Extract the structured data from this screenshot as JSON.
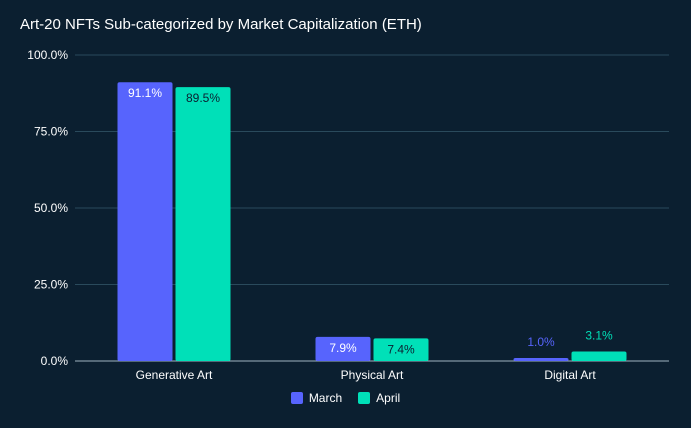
{
  "chart_data": {
    "type": "bar",
    "title": "Art-20 NFTs Sub-categorized by Market Capitalization (ETH)",
    "categories": [
      "Generative Art",
      "Physical Art",
      "Digital Art"
    ],
    "series": [
      {
        "name": "March",
        "color": "#5764fd",
        "values": [
          91.1,
          7.9,
          1.0
        ],
        "labels": [
          "91.1%",
          "7.9%",
          "1.0%"
        ]
      },
      {
        "name": "April",
        "color": "#00e0b8",
        "values": [
          89.5,
          7.4,
          3.1
        ],
        "labels": [
          "89.5%",
          "7.4%",
          "3.1%"
        ]
      }
    ],
    "ylim": [
      0,
      100
    ],
    "yticks": [
      {
        "value": 0,
        "label": "0.0%"
      },
      {
        "value": 25,
        "label": "25.0%"
      },
      {
        "value": 50,
        "label": "50.0%"
      },
      {
        "value": 75,
        "label": "75.0%"
      },
      {
        "value": 100,
        "label": "100.0%"
      }
    ],
    "grid": true,
    "legend_position": "bottom-center",
    "colors": {
      "background": "#0b1f30",
      "grid": "#2a4a5c",
      "text": "#ffffff"
    }
  }
}
